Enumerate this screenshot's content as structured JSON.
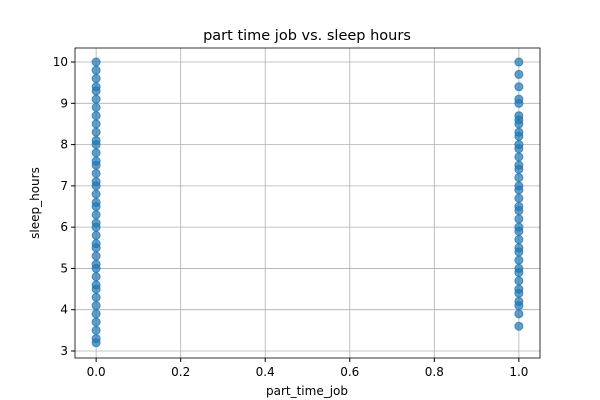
{
  "chart_data": {
    "type": "scatter",
    "title": "part time job vs. sleep hours",
    "x_label": "part_time_job",
    "y_label": "sleep_hours",
    "color": "#1f77b4",
    "grid": true,
    "x": [
      0,
      0,
      0,
      0,
      0,
      0,
      0,
      0,
      0,
      0,
      0,
      0,
      0,
      0,
      0,
      0,
      0,
      0,
      0,
      0,
      0,
      0,
      0,
      0,
      0,
      0,
      0,
      0,
      0,
      0,
      0,
      0,
      0,
      0,
      0,
      0,
      0,
      0,
      0,
      0,
      1,
      1,
      1,
      1,
      1,
      1,
      1,
      1,
      1,
      1,
      1,
      1,
      1,
      1,
      1,
      1,
      1,
      1,
      1,
      1,
      1,
      1,
      1,
      1,
      1,
      1,
      1,
      1,
      1,
      1,
      1,
      1,
      1,
      1,
      1,
      1,
      1
    ],
    "y": [
      3.2,
      3.3,
      3.5,
      3.7,
      3.9,
      4.1,
      4.3,
      4.5,
      4.6,
      4.8,
      5.0,
      5.1,
      5.3,
      5.5,
      5.6,
      5.8,
      6.0,
      6.1,
      6.3,
      6.5,
      6.6,
      6.8,
      7.0,
      7.1,
      7.3,
      7.5,
      7.6,
      7.8,
      8.0,
      8.1,
      8.3,
      8.5,
      8.7,
      8.9,
      9.1,
      9.3,
      9.4,
      9.6,
      9.8,
      10.0,
      3.6,
      3.9,
      4.1,
      4.2,
      4.4,
      4.5,
      4.7,
      4.9,
      5.0,
      5.2,
      5.4,
      5.5,
      5.7,
      5.9,
      6.0,
      6.2,
      6.4,
      6.5,
      6.7,
      6.9,
      7.0,
      7.2,
      7.4,
      7.5,
      7.7,
      7.9,
      8.0,
      8.2,
      8.3,
      8.5,
      8.6,
      8.7,
      9.0,
      9.1,
      9.4,
      9.7,
      10.0
    ],
    "xlim": [
      -0.05,
      1.05
    ],
    "ylim": [
      2.83,
      10.34
    ],
    "xticks": [
      {
        "value": 0,
        "label": "0.0"
      },
      0.2,
      0.4,
      0.6,
      0.8,
      {
        "value": 1,
        "label": "1.0"
      }
    ],
    "yticks": [
      3,
      4,
      5,
      6,
      7,
      8,
      9,
      10
    ]
  }
}
